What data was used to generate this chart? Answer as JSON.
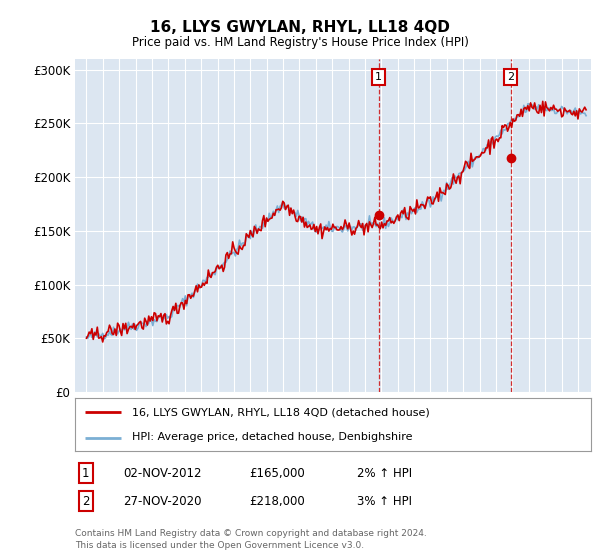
{
  "title": "16, LLYS GWYLAN, RHYL, LL18 4QD",
  "subtitle": "Price paid vs. HM Land Registry's House Price Index (HPI)",
  "red_label": "16, LLYS GWYLAN, RHYL, LL18 4QD (detached house)",
  "blue_label": "HPI: Average price, detached house, Denbighshire",
  "sale1_date": "02-NOV-2012",
  "sale1_price": 165000,
  "sale1_pct": "2%",
  "sale2_date": "27-NOV-2020",
  "sale2_price": 218000,
  "sale2_pct": "3%",
  "footnote": "Contains HM Land Registry data © Crown copyright and database right 2024.\nThis data is licensed under the Open Government Licence v3.0.",
  "bg_color": "#dce6f1",
  "red_color": "#cc0000",
  "blue_color": "#7bafd4",
  "ylim_min": 0,
  "ylim_max": 310000,
  "sale1_x": 2012.84,
  "sale2_x": 2020.9
}
